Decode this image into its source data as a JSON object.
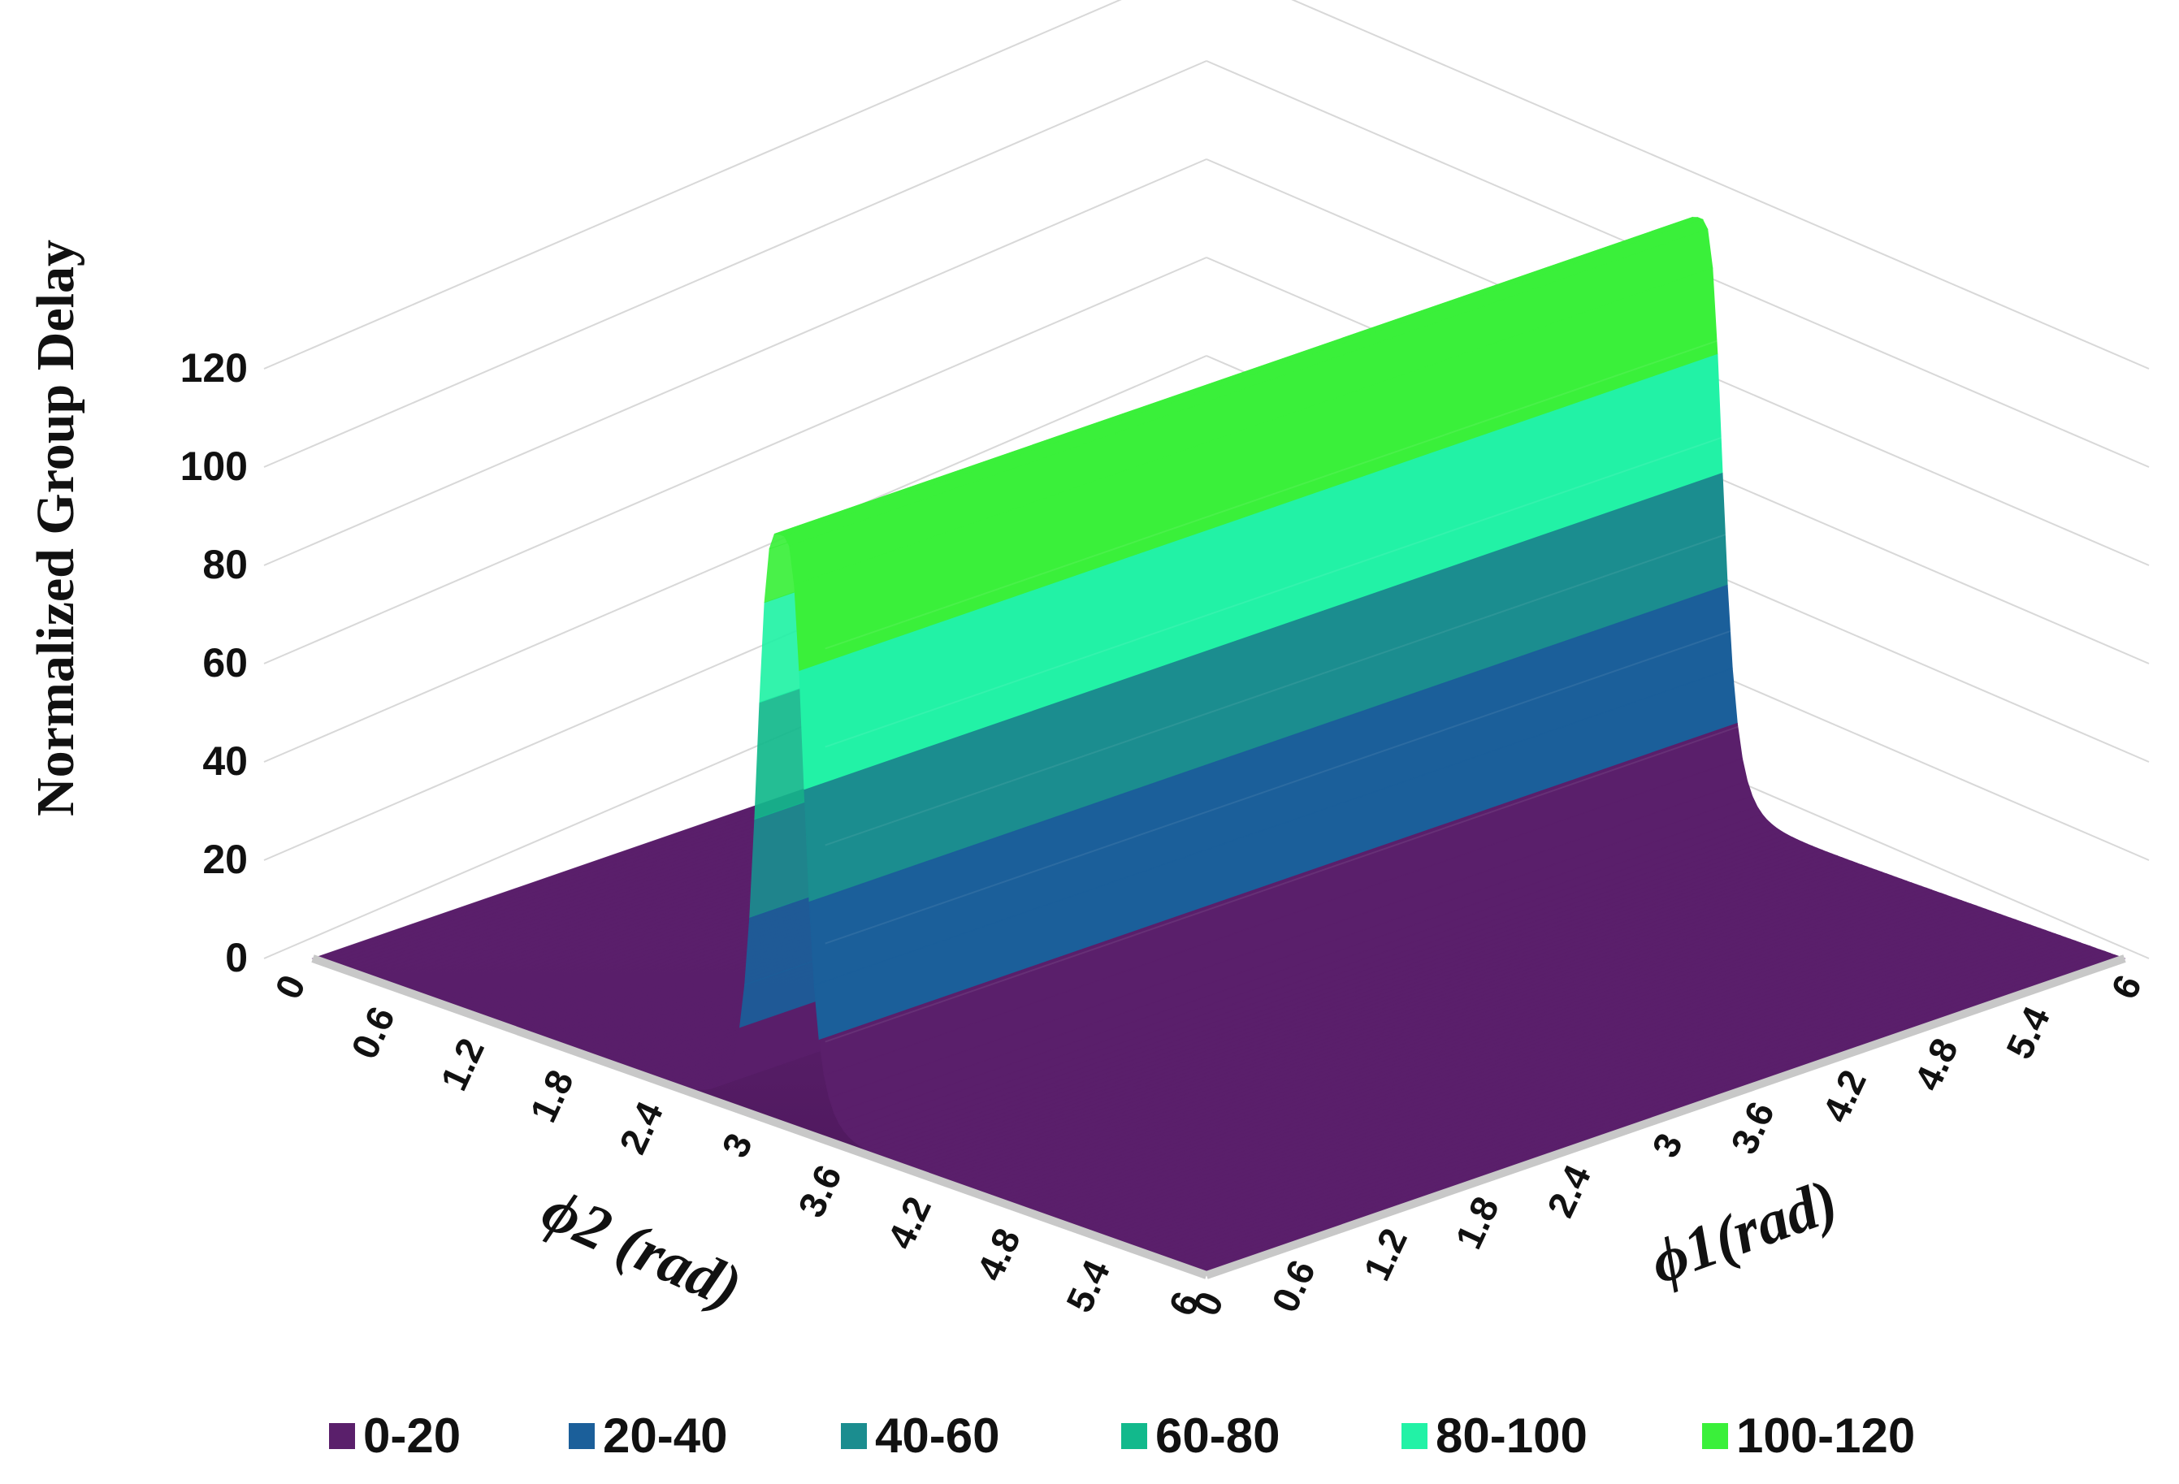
{
  "chart_data": {
    "type": "surface",
    "zlabel": "Normalized Group Delay",
    "xlabel": "ϕ2 (rad)",
    "ylabel": "ϕ1(rad)",
    "zticks": [
      "0",
      "20",
      "40",
      "60",
      "80",
      "100",
      "120"
    ],
    "zlim": [
      0,
      120
    ],
    "x_ticks": [
      "0",
      "0.6",
      "1.2",
      "1.8",
      "2.4",
      "3",
      "3.6",
      "4.2",
      "4.8",
      "5.4",
      "6"
    ],
    "y_ticks": [
      "0",
      "0.6",
      "1.2",
      "1.8",
      "2.4",
      "3",
      "3.6",
      "4.2",
      "4.8",
      "5.4",
      "6"
    ],
    "xlim": [
      0,
      6
    ],
    "ylim": [
      0,
      6
    ],
    "ridge": {
      "axis": "ϕ2",
      "center": 3.14,
      "peak": 120,
      "baseline": 0
    },
    "legend": {
      "placement": "bottom",
      "items": [
        {
          "label": "0-20",
          "color": "#5a1f6b"
        },
        {
          "label": "20-40",
          "color": "#1b5f9a"
        },
        {
          "label": "40-60",
          "color": "#1b8d8f"
        },
        {
          "label": "60-80",
          "color": "#12b98c"
        },
        {
          "label": "80-100",
          "color": "#22f2a6"
        },
        {
          "label": "100-120",
          "color": "#3af03a"
        }
      ]
    },
    "grid": true
  }
}
